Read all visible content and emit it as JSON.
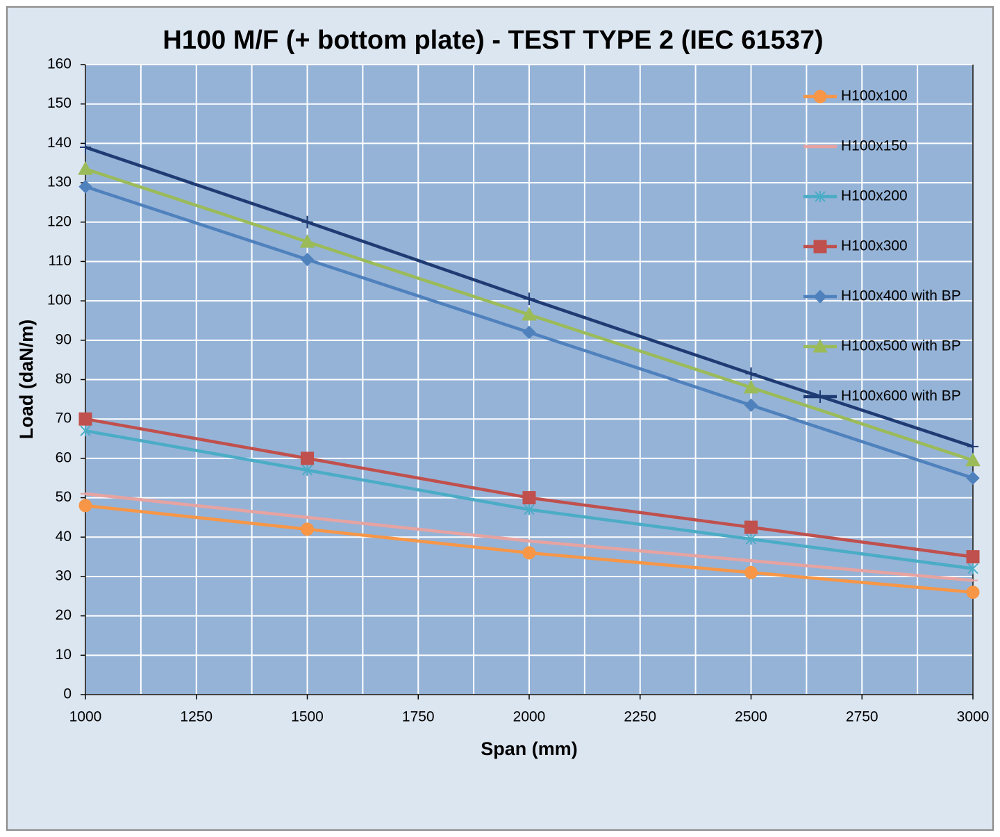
{
  "chart_data": {
    "type": "line",
    "title": "H100 M/F (+ bottom plate) - TEST TYPE 2 (IEC 61537)",
    "xlabel": "Span (mm)",
    "ylabel": "Load (daN/m)",
    "x": [
      1000,
      1500,
      2000,
      2500,
      3000
    ],
    "xlim": [
      1000,
      3000
    ],
    "xticks": [
      1000,
      1250,
      1500,
      1750,
      2000,
      2250,
      2500,
      2750,
      3000
    ],
    "ylim": [
      0,
      160
    ],
    "yticks": [
      0,
      10,
      20,
      30,
      40,
      50,
      60,
      70,
      80,
      90,
      100,
      110,
      120,
      130,
      140,
      150,
      160
    ],
    "grid": true,
    "legend": "right",
    "series": [
      {
        "name": "H100x100",
        "color": "#f79646",
        "marker": "circle",
        "values": [
          48,
          42,
          36,
          31,
          26
        ]
      },
      {
        "name": "H100x150",
        "color": "#e6a3a1",
        "marker": "none",
        "values": [
          51,
          45,
          39,
          34,
          29
        ]
      },
      {
        "name": "H100x200",
        "color": "#4bacc6",
        "marker": "star",
        "values": [
          67,
          57,
          47,
          39.5,
          32
        ]
      },
      {
        "name": "H100x300",
        "color": "#c0504d",
        "marker": "square",
        "values": [
          70,
          60,
          50,
          42.5,
          35
        ]
      },
      {
        "name": "H100x400 with BP",
        "color": "#4f81bd",
        "marker": "diamond",
        "values": [
          129,
          110.5,
          92,
          73.5,
          55
        ]
      },
      {
        "name": "H100x500 with BP",
        "color": "#9bbb59",
        "marker": "triangle",
        "values": [
          133.5,
          115,
          96.5,
          78,
          59.5
        ]
      },
      {
        "name": "H100x600 with BP",
        "color": "#1f3b73",
        "marker": "plus",
        "values": [
          139,
          120,
          100.5,
          81.5,
          63
        ]
      }
    ]
  }
}
